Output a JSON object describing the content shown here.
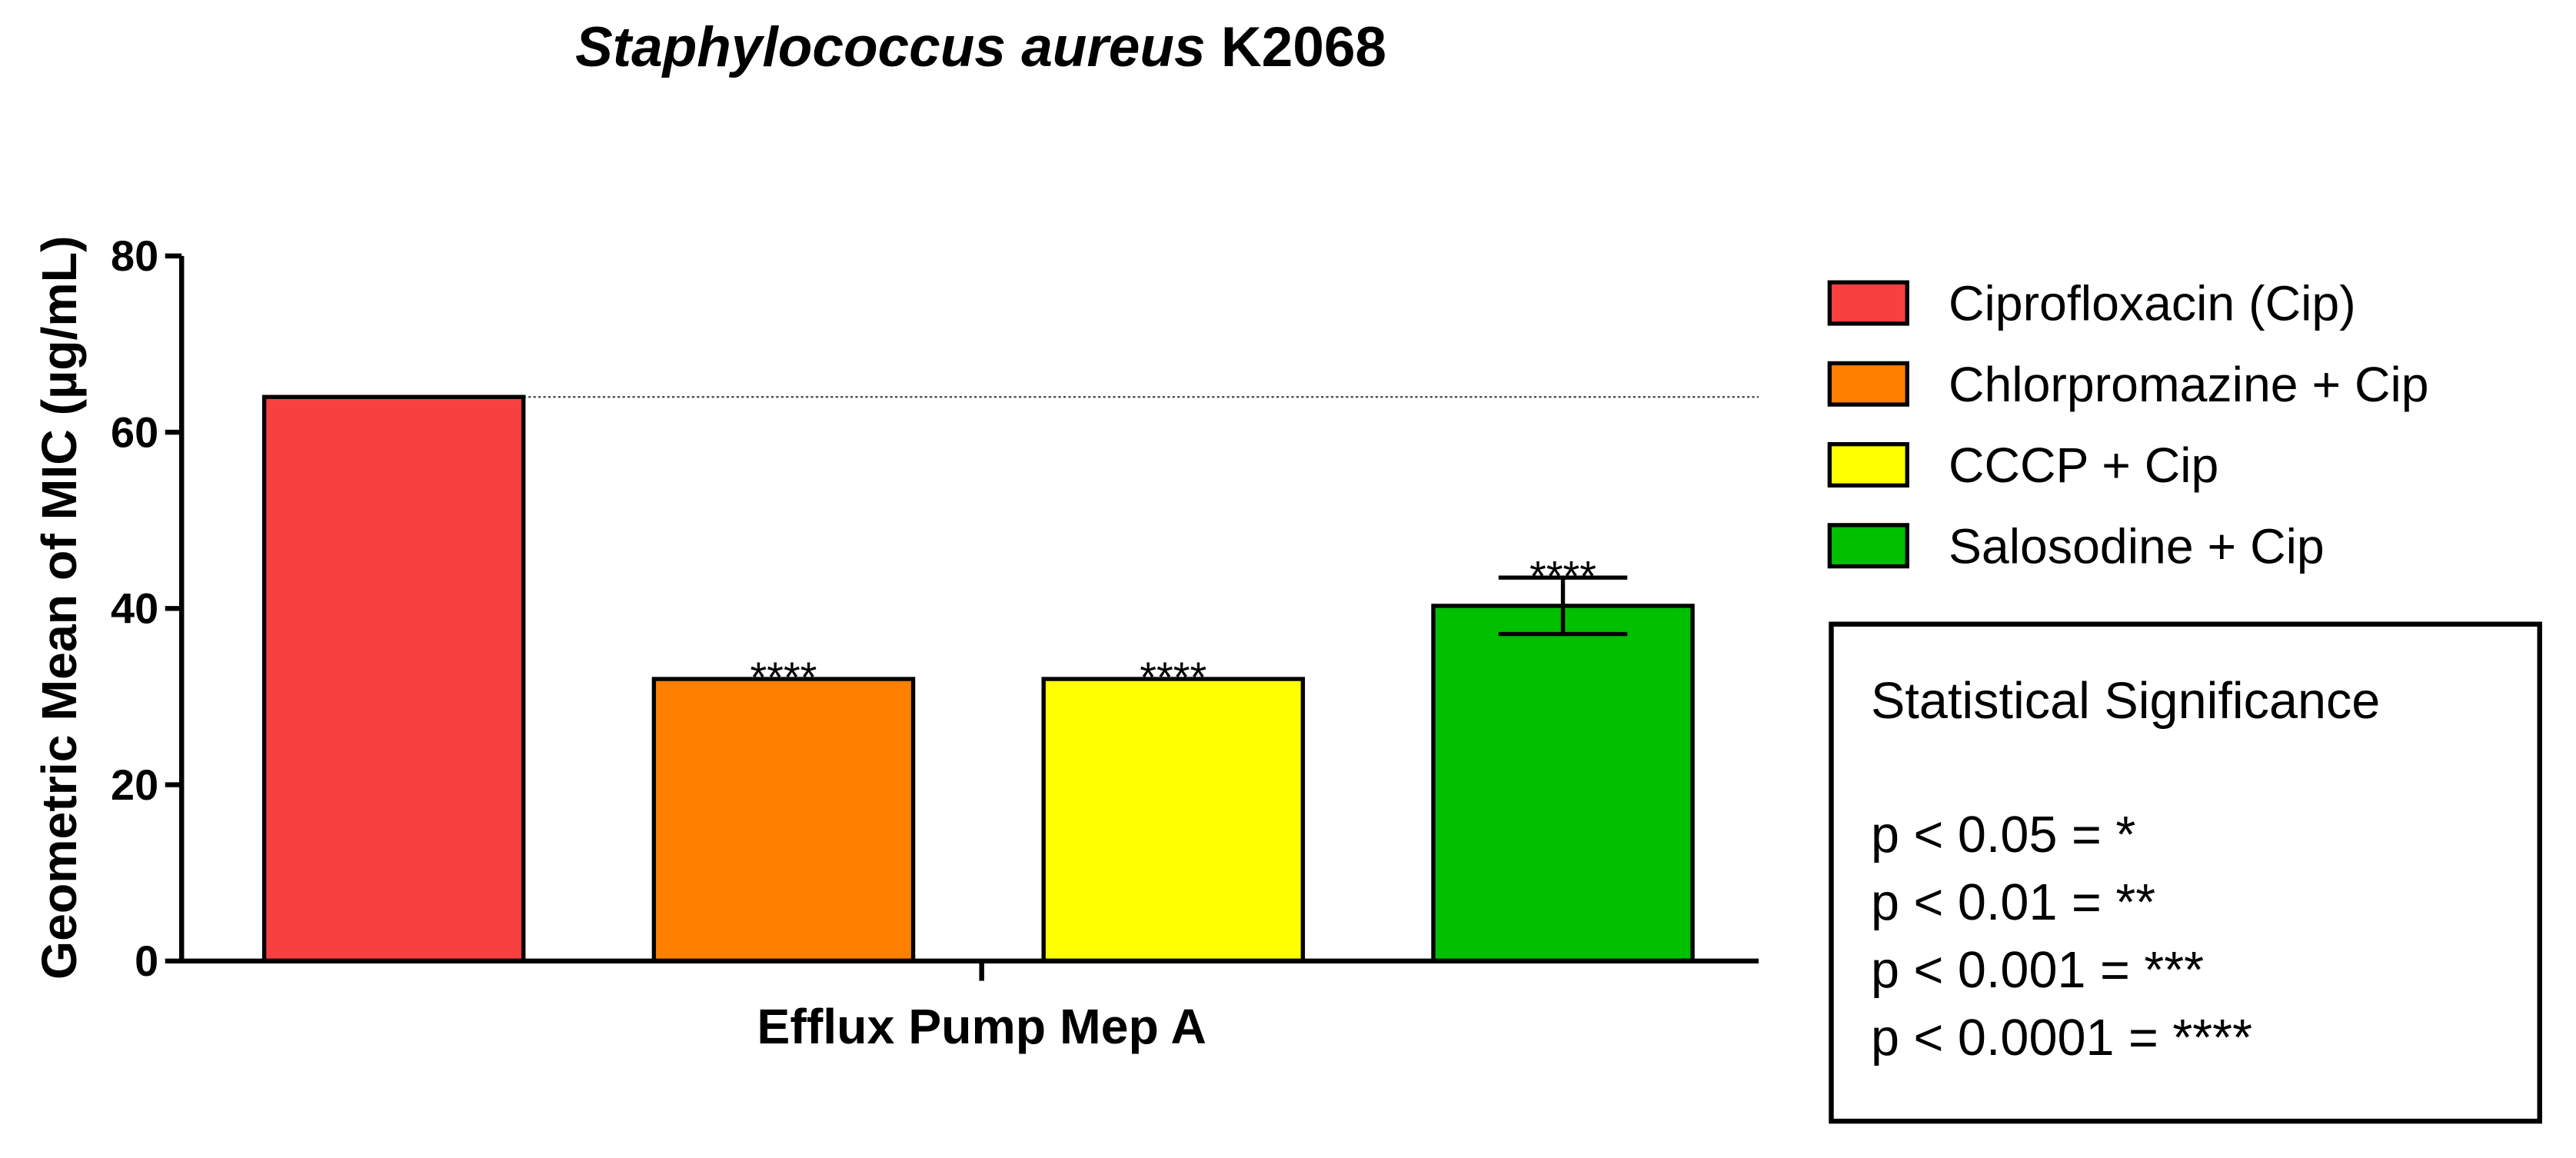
{
  "chart_data": {
    "type": "bar",
    "title": [
      "Staphylococcus aureus",
      "K2068"
    ],
    "y_label": "Geometric Mean of MIC (µg/mL)",
    "categories": [
      "Efflux Pump Mep A"
    ],
    "series": [
      {
        "name": "Ciprofloxacin (Cip)",
        "color": "#f84040",
        "values": [
          64
        ]
      },
      {
        "name": "Chlorpromazine + Cip",
        "color": "#ff8000",
        "values": [
          32
        ],
        "significance": "****"
      },
      {
        "name": "CCCP + Cip",
        "color": "#ffff00",
        "values": [
          32
        ],
        "significance": "****"
      },
      {
        "name": "Salosodine + Cip",
        "color": "#00c000",
        "values": [
          40.3
        ],
        "errors": [
          3.2
        ],
        "significance": "****"
      }
    ],
    "ylim": [
      0,
      80
    ],
    "yticks": [
      0,
      20,
      40,
      60,
      80
    ],
    "reference_line": true,
    "significance_box": {
      "title": "Statistical Significance",
      "lines": [
        "p < 0.05 = *",
        "p < 0.01 = **",
        "p < 0.001 = ***",
        "p < 0.0001 = ****"
      ]
    }
  }
}
